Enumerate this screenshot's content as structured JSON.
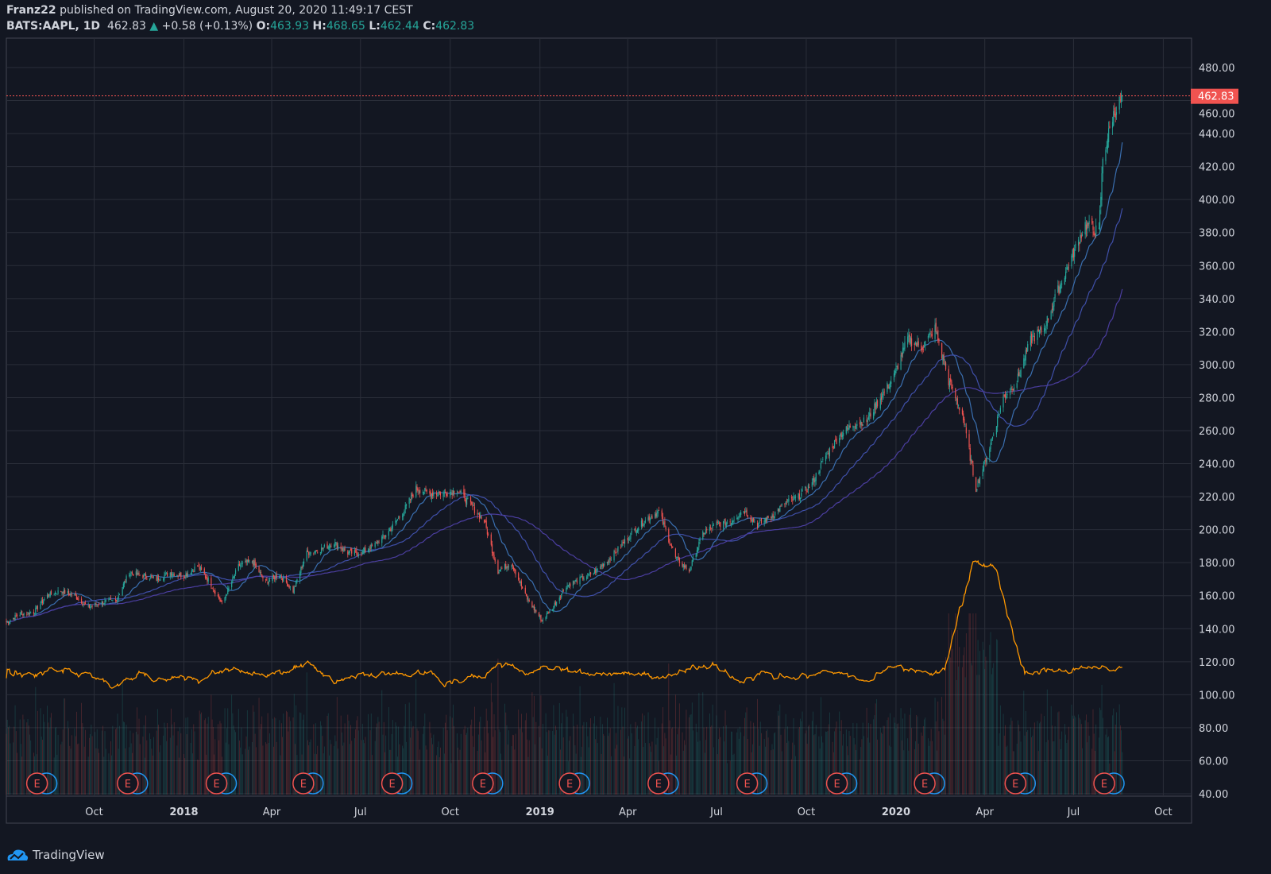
{
  "header": {
    "publisher": "Franz22",
    "published_text": "published on TradingView.com, August 20, 2020 11:49:17 CEST",
    "symbol": "BATS:AAPL, 1D",
    "last": "462.83",
    "change": "+0.58 (+0.13%)",
    "o_label": "O:",
    "open": "463.93",
    "h_label": "H:",
    "high": "468.65",
    "l_label": "L:",
    "low": "462.44",
    "c_label": "C:",
    "close": "462.83"
  },
  "branding": "TradingView",
  "colors": {
    "up": "#26a69a",
    "down": "#ef5350",
    "ma": "#2962ff",
    "vol_ma": "#ff9800",
    "bg": "#131722",
    "grid": "#2a2e39",
    "last_price": "#f05350"
  },
  "chart_data": {
    "type": "candlestick",
    "title": "BATS:AAPL, 1D",
    "ylim": [
      40,
      480
    ],
    "y_ticks": [
      "480.00",
      "460.00",
      "440.00",
      "420.00",
      "400.00",
      "380.00",
      "360.00",
      "340.00",
      "320.00",
      "300.00",
      "280.00",
      "260.00",
      "240.00",
      "220.00",
      "200.00",
      "180.00",
      "160.00",
      "140.00",
      "120.00",
      "100.00",
      "80.00",
      "60.00",
      "40.00"
    ],
    "x_ticks": [
      {
        "label": "Oct",
        "date": "2017-10-01"
      },
      {
        "label": "2018",
        "date": "2018-01-01",
        "bold": true
      },
      {
        "label": "Apr",
        "date": "2018-04-01"
      },
      {
        "label": "Jul",
        "date": "2018-07-01"
      },
      {
        "label": "Oct",
        "date": "2018-10-01"
      },
      {
        "label": "2019",
        "date": "2019-01-01",
        "bold": true
      },
      {
        "label": "Apr",
        "date": "2019-04-01"
      },
      {
        "label": "Jul",
        "date": "2019-07-01"
      },
      {
        "label": "Oct",
        "date": "2019-10-01"
      },
      {
        "label": "2020",
        "date": "2020-01-01",
        "bold": true
      },
      {
        "label": "Apr",
        "date": "2020-04-01"
      },
      {
        "label": "Jul",
        "date": "2020-07-01"
      },
      {
        "label": "Oct",
        "date": "2020-10-01"
      }
    ],
    "last_price_label": "462.83",
    "last_price": 462.83,
    "closes": [
      [
        "2017-07-03",
        144
      ],
      [
        "2017-07-17",
        149
      ],
      [
        "2017-07-31",
        150
      ],
      [
        "2017-08-14",
        160
      ],
      [
        "2017-08-28",
        163
      ],
      [
        "2017-09-11",
        160
      ],
      [
        "2017-09-25",
        153
      ],
      [
        "2017-10-09",
        156
      ],
      [
        "2017-10-23",
        157
      ],
      [
        "2017-11-06",
        174
      ],
      [
        "2017-11-20",
        172
      ],
      [
        "2017-12-04",
        170
      ],
      [
        "2017-12-18",
        174
      ],
      [
        "2018-01-01",
        172
      ],
      [
        "2018-01-15",
        178
      ],
      [
        "2018-01-29",
        167
      ],
      [
        "2018-02-09",
        155
      ],
      [
        "2018-02-26",
        178
      ],
      [
        "2018-03-12",
        181
      ],
      [
        "2018-03-26",
        168
      ],
      [
        "2018-04-09",
        173
      ],
      [
        "2018-04-23",
        163
      ],
      [
        "2018-05-07",
        186
      ],
      [
        "2018-05-21",
        188
      ],
      [
        "2018-06-04",
        192
      ],
      [
        "2018-06-18",
        186
      ],
      [
        "2018-07-02",
        186
      ],
      [
        "2018-07-16",
        191
      ],
      [
        "2018-07-30",
        199
      ],
      [
        "2018-08-13",
        210
      ],
      [
        "2018-08-27",
        225
      ],
      [
        "2018-09-10",
        222
      ],
      [
        "2018-09-24",
        222
      ],
      [
        "2018-10-08",
        224
      ],
      [
        "2018-10-22",
        215
      ],
      [
        "2018-11-05",
        205
      ],
      [
        "2018-11-19",
        175
      ],
      [
        "2018-12-03",
        180
      ],
      [
        "2018-12-17",
        160
      ],
      [
        "2019-01-03",
        145
      ],
      [
        "2019-01-14",
        153
      ],
      [
        "2019-01-28",
        166
      ],
      [
        "2019-02-11",
        170
      ],
      [
        "2019-02-25",
        174
      ],
      [
        "2019-03-11",
        181
      ],
      [
        "2019-03-25",
        190
      ],
      [
        "2019-04-08",
        200
      ],
      [
        "2019-04-22",
        207
      ],
      [
        "2019-05-03",
        211
      ],
      [
        "2019-05-20",
        183
      ],
      [
        "2019-06-03",
        175
      ],
      [
        "2019-06-17",
        198
      ],
      [
        "2019-07-01",
        203
      ],
      [
        "2019-07-15",
        205
      ],
      [
        "2019-07-29",
        212
      ],
      [
        "2019-08-12",
        203
      ],
      [
        "2019-08-26",
        208
      ],
      [
        "2019-09-09",
        216
      ],
      [
        "2019-09-23",
        220
      ],
      [
        "2019-10-07",
        228
      ],
      [
        "2019-10-21",
        245
      ],
      [
        "2019-11-04",
        257
      ],
      [
        "2019-11-18",
        264
      ],
      [
        "2019-12-02",
        266
      ],
      [
        "2019-12-16",
        280
      ],
      [
        "2019-12-30",
        293
      ],
      [
        "2020-01-13",
        316
      ],
      [
        "2020-01-27",
        310
      ],
      [
        "2020-02-10",
        322
      ],
      [
        "2020-02-24",
        290
      ],
      [
        "2020-03-09",
        270
      ],
      [
        "2020-03-23",
        225
      ],
      [
        "2020-04-06",
        250
      ],
      [
        "2020-04-20",
        280
      ],
      [
        "2020-05-04",
        290
      ],
      [
        "2020-05-18",
        315
      ],
      [
        "2020-06-01",
        322
      ],
      [
        "2020-06-15",
        345
      ],
      [
        "2020-06-29",
        365
      ],
      [
        "2020-07-13",
        385
      ],
      [
        "2020-07-27",
        380
      ],
      [
        "2020-07-31",
        425
      ],
      [
        "2020-08-10",
        450
      ],
      [
        "2020-08-20",
        462.83
      ]
    ],
    "moving_averages": [
      20,
      50,
      100
    ],
    "volume_ma_length": 20,
    "earnings_label": "E",
    "earnings_dates": [
      "2017-08-01",
      "2017-11-02",
      "2018-02-01",
      "2018-05-01",
      "2018-07-31",
      "2018-11-01",
      "2019-01-29",
      "2019-04-30",
      "2019-07-30",
      "2019-10-30",
      "2020-01-28",
      "2020-04-30",
      "2020-07-30"
    ]
  }
}
